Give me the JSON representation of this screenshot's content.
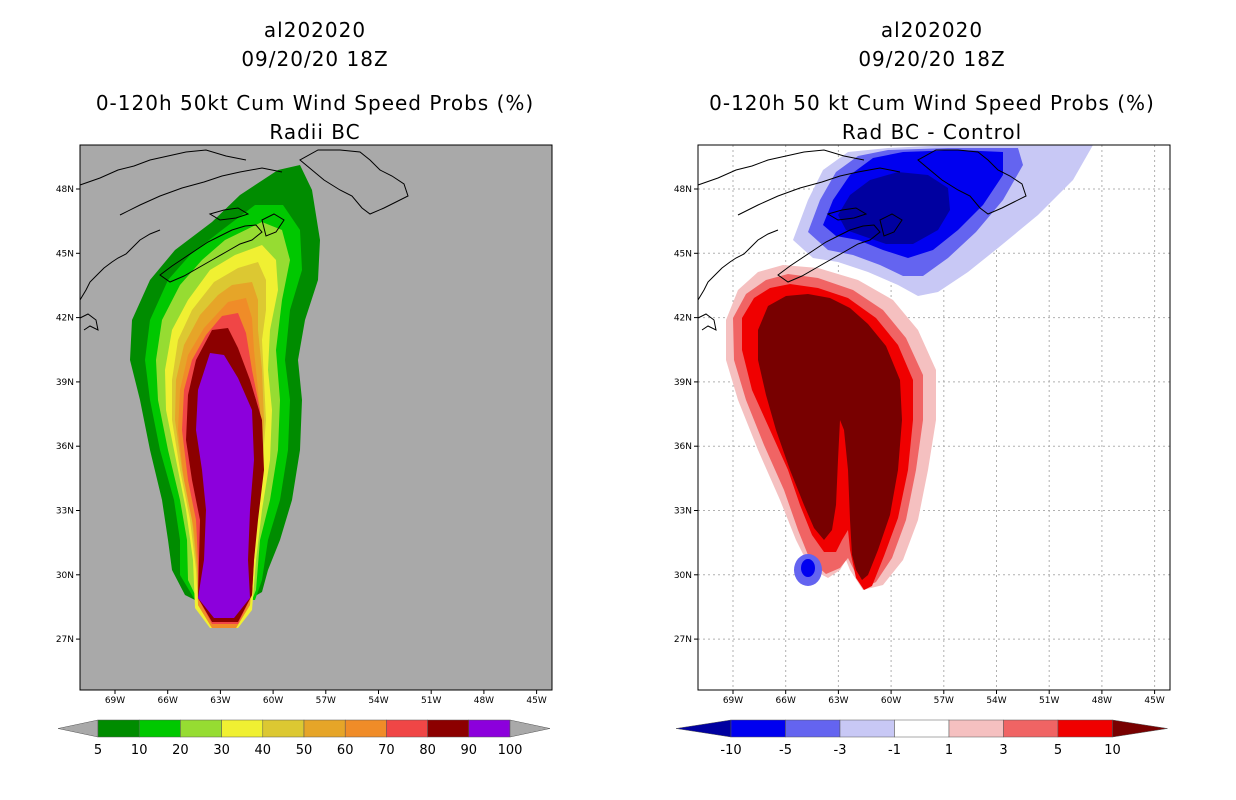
{
  "left": {
    "storm_id": "al202020",
    "datetime": "09/20/20 18Z",
    "title": "0-120h 50kt Cum Wind Speed Probs (%)",
    "subtitle": "Radii BC",
    "lat_labels": [
      "48N",
      "45N",
      "42N",
      "39N",
      "36N",
      "33N",
      "30N",
      "27N"
    ],
    "lon_labels": [
      "69W",
      "66W",
      "63W",
      "60W",
      "57W",
      "54W",
      "51W",
      "48W",
      "45W"
    ],
    "colorbar": {
      "labels": [
        "5",
        "10",
        "20",
        "30",
        "40",
        "50",
        "60",
        "70",
        "80",
        "90",
        "100"
      ],
      "colors": [
        "#008c00",
        "#00c800",
        "#96dc32",
        "#f0f032",
        "#dcc832",
        "#e6a528",
        "#f08c28",
        "#f04646",
        "#8c0000",
        "#8c00dc"
      ]
    }
  },
  "right": {
    "storm_id": "al202020",
    "datetime": "09/20/20 18Z",
    "title": "0-120h 50 kt Cum Wind Speed Probs (%)",
    "subtitle": "Rad BC - Control",
    "lat_labels": [
      "48N",
      "45N",
      "42N",
      "39N",
      "36N",
      "33N",
      "30N",
      "27N"
    ],
    "lon_labels": [
      "69W",
      "66W",
      "63W",
      "60W",
      "57W",
      "54W",
      "51W",
      "48W",
      "45W"
    ],
    "colorbar": {
      "labels": [
        "-10",
        "-5",
        "-3",
        "-1",
        "1",
        "3",
        "5",
        "10"
      ],
      "colors": [
        "#0000a0",
        "#0000f0",
        "#6464f0",
        "#c8c8f5",
        "#ffffff",
        "#f5c0c0",
        "#f06464",
        "#f00000",
        "#780000"
      ]
    }
  }
}
